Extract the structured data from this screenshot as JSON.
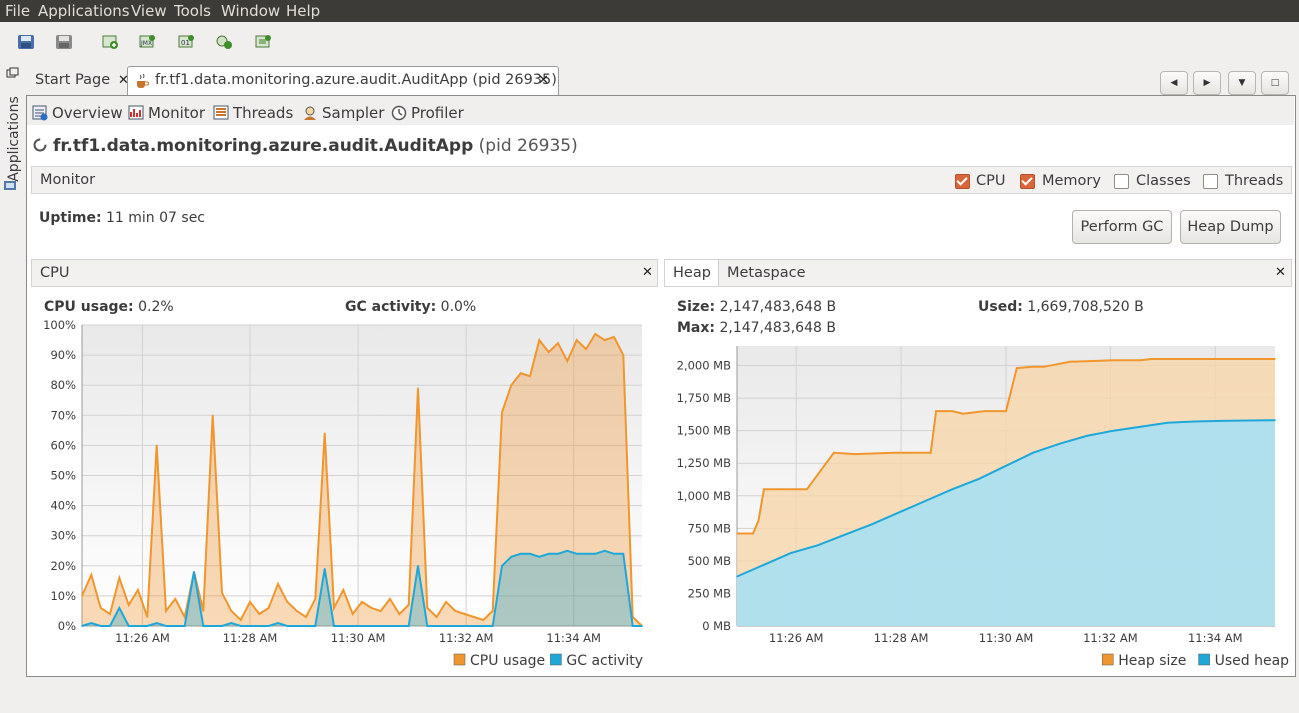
{
  "menu": [
    "File",
    "Applications",
    "View",
    "Tools",
    "Window",
    "Help"
  ],
  "side_panel": {
    "label": "Applications"
  },
  "tabs": {
    "start_page": "Start Page",
    "app_tab": "fr.tf1.data.monitoring.azure.audit.AuditApp (pid 26935)"
  },
  "subtabs": [
    "Overview",
    "Monitor",
    "Threads",
    "Sampler",
    "Profiler"
  ],
  "app_title": {
    "name": "fr.tf1.data.monitoring.azure.audit.AuditApp",
    "pid": "(pid 26935)"
  },
  "monitor_header": {
    "title": "Monitor",
    "checkboxes": [
      {
        "label": "CPU",
        "checked": true
      },
      {
        "label": "Memory",
        "checked": true
      },
      {
        "label": "Classes",
        "checked": false
      },
      {
        "label": "Threads",
        "checked": false
      }
    ]
  },
  "uptime": {
    "label": "Uptime:",
    "value": "11 min 07 sec"
  },
  "buttons": {
    "perform_gc": "Perform GC",
    "heap_dump": "Heap Dump"
  },
  "cpu_panel": {
    "title": "CPU",
    "cpu_usage_label": "CPU usage:",
    "cpu_usage_value": "0.2%",
    "gc_label": "GC activity:",
    "gc_value": "0.0%"
  },
  "heap_panel": {
    "tab_heap": "Heap",
    "tab_metaspace": "Metaspace",
    "size_label": "Size:",
    "size_value": "2,147,483,648 B",
    "max_label": "Max:",
    "max_value": "2,147,483,648 B",
    "used_label": "Used:",
    "used_value": "1,669,708,520 B"
  },
  "chart_data": [
    {
      "type": "line",
      "y_ticks": [
        "0%",
        "10%",
        "20%",
        "30%",
        "40%",
        "50%",
        "60%",
        "70%",
        "80%",
        "90%",
        "100%"
      ],
      "x_ticks": [
        "11:26 AM",
        "11:28 AM",
        "11:30 AM",
        "11:32 AM",
        "11:34 AM"
      ],
      "ylim": [
        0,
        100
      ],
      "grid": true,
      "legend_position": "bottom-right",
      "series": [
        {
          "name": "CPU usage",
          "color": "#f0962e",
          "values": [
            10,
            17,
            6,
            4,
            16,
            7,
            12,
            3,
            60,
            5,
            9,
            3,
            18,
            5,
            70,
            11,
            5,
            2,
            8,
            4,
            6,
            14,
            8,
            5,
            3,
            9,
            64,
            6,
            12,
            4,
            8,
            6,
            5,
            9,
            4,
            7,
            79,
            6,
            3,
            8,
            5,
            4,
            3,
            2,
            5,
            71,
            80,
            84,
            83,
            95,
            91,
            94,
            88,
            95,
            92,
            97,
            95,
            96,
            90,
            3,
            0
          ]
        },
        {
          "name": "GC activity",
          "color": "#1ea7d9",
          "values": [
            0,
            1,
            0,
            0,
            6,
            0,
            0,
            0,
            1,
            0,
            0,
            0,
            18,
            0,
            0,
            0,
            1,
            0,
            0,
            0,
            0,
            1,
            0,
            0,
            0,
            0,
            19,
            0,
            0,
            0,
            0,
            0,
            0,
            0,
            0,
            0,
            20,
            0,
            0,
            0,
            0,
            0,
            0,
            0,
            0,
            20,
            23,
            24,
            24,
            23,
            24,
            24,
            25,
            24,
            24,
            24,
            25,
            24,
            24,
            0,
            0
          ]
        }
      ]
    },
    {
      "type": "area",
      "y_ticks": [
        "0 MB",
        "250 MB",
        "500 MB",
        "750 MB",
        "1,000 MB",
        "1,250 MB",
        "1,500 MB",
        "1,750 MB",
        "2,000 MB"
      ],
      "x_ticks": [
        "11:26 AM",
        "11:28 AM",
        "11:30 AM",
        "11:32 AM",
        "11:34 AM"
      ],
      "ylim": [
        0,
        2150
      ],
      "grid": true,
      "legend_position": "bottom-right",
      "series": [
        {
          "name": "Heap size",
          "color": "#f0962e",
          "x": [
            0,
            0.03,
            0.04,
            0.05,
            0.08,
            0.13,
            0.18,
            0.22,
            0.29,
            0.31,
            0.32,
            0.36,
            0.37,
            0.4,
            0.42,
            0.46,
            0.47,
            0.5,
            0.52,
            0.55,
            0.57,
            0.62,
            0.63,
            0.7,
            0.72,
            0.75,
            0.77,
            0.8,
            0.9,
            1.0
          ],
          "values": [
            710,
            710,
            810,
            1050,
            1050,
            1050,
            1330,
            1320,
            1330,
            1330,
            1330,
            1330,
            1650,
            1650,
            1630,
            1650,
            1650,
            1650,
            1980,
            1990,
            1990,
            2030,
            2030,
            2040,
            2040,
            2040,
            2050,
            2050,
            2050,
            2050
          ]
        },
        {
          "name": "Used heap",
          "color": "#1ea7d9",
          "x": [
            0,
            0.05,
            0.1,
            0.15,
            0.2,
            0.25,
            0.3,
            0.35,
            0.4,
            0.45,
            0.5,
            0.55,
            0.6,
            0.65,
            0.7,
            0.75,
            0.8,
            0.85,
            0.9,
            0.95,
            1.0
          ],
          "values": [
            380,
            470,
            560,
            620,
            700,
            780,
            870,
            960,
            1050,
            1130,
            1230,
            1330,
            1400,
            1460,
            1500,
            1530,
            1560,
            1570,
            1575,
            1578,
            1580
          ]
        }
      ]
    }
  ]
}
